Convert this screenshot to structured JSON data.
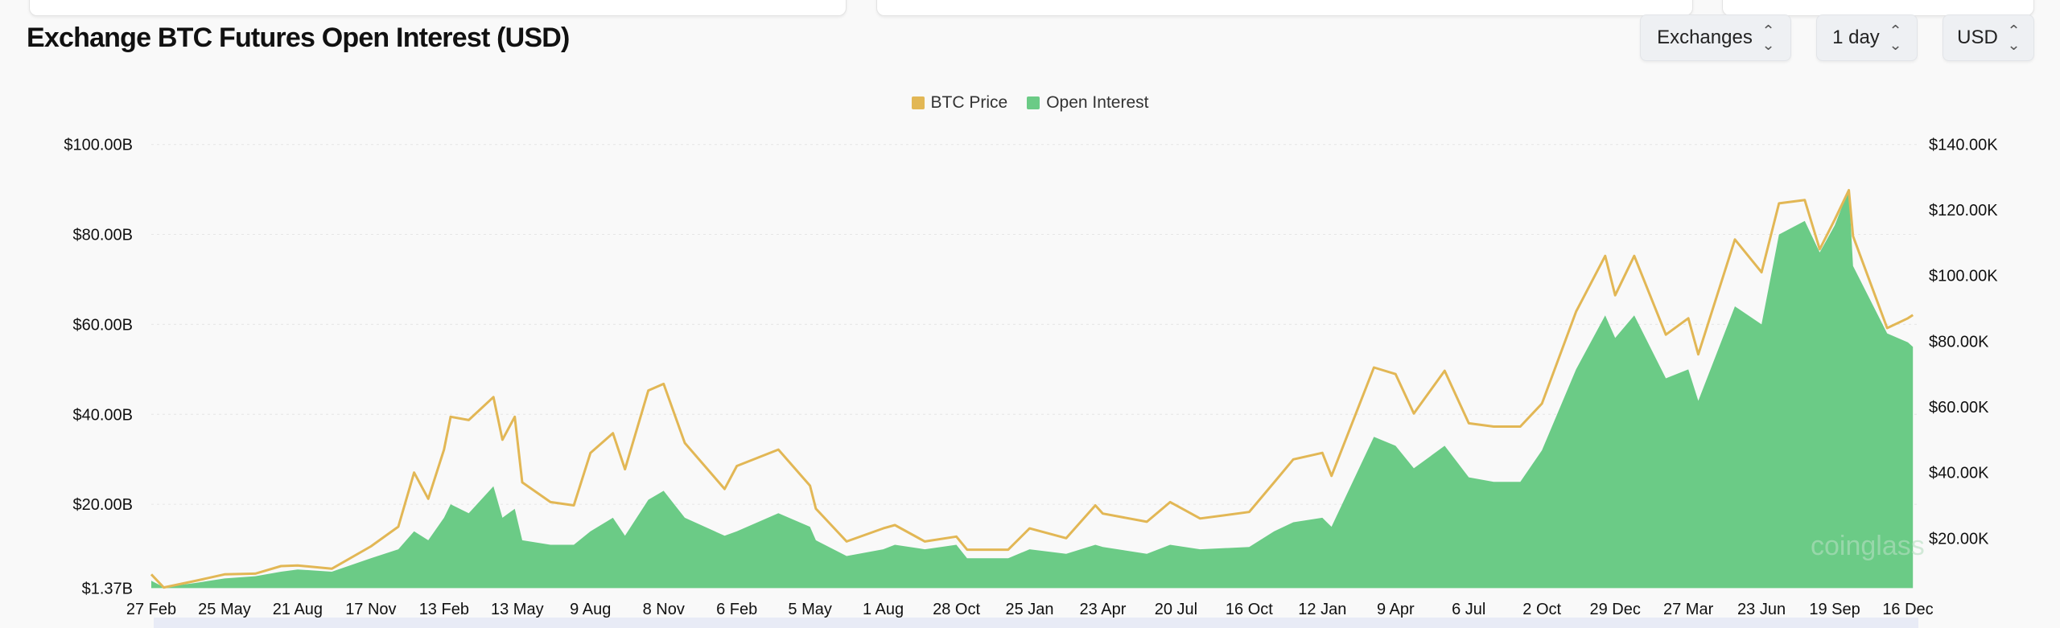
{
  "title": "Exchange BTC Futures Open Interest (USD)",
  "controls": {
    "exchanges": "Exchanges",
    "interval": "1 day",
    "currency": "USD",
    "chevron_icon": "updown-chevron-icon"
  },
  "colors": {
    "price": "#e2b755",
    "open_interest": "#6bcb86",
    "grid": "#e6e6e6"
  },
  "chart_data": {
    "type": "area+line",
    "legend": [
      {
        "name": "BTC Price",
        "color": "#e2b755"
      },
      {
        "name": "Open Interest",
        "color": "#6bcb86"
      }
    ],
    "legend_position": "top-center",
    "left_axis": {
      "ticks": [
        "$1.37B",
        "$20.00B",
        "$40.00B",
        "$60.00B",
        "$80.00B",
        "$100.00B"
      ],
      "values": [
        1.37,
        20,
        40,
        60,
        80,
        100
      ],
      "unit": "B USD"
    },
    "right_axis": {
      "ticks": [
        "$20.00K",
        "$40.00K",
        "$60.00K",
        "$80.00K",
        "$100.00K",
        "$120.00K",
        "$140.00K"
      ],
      "values": [
        20,
        40,
        60,
        80,
        100,
        120,
        140
      ],
      "unit": "K USD"
    },
    "x_ticks": [
      "27 Feb",
      "25 May",
      "21 Aug",
      "17 Nov",
      "13 Feb",
      "13 May",
      "9 Aug",
      "8 Nov",
      "6 Feb",
      "5 May",
      "1 Aug",
      "28 Oct",
      "25 Jan",
      "23 Apr",
      "20 Jul",
      "16 Oct",
      "12 Jan",
      "9 Apr",
      "6 Jul",
      "2 Oct",
      "29 Dec",
      "27 Mar",
      "23 Jun",
      "19 Sep",
      "16 Dec"
    ],
    "x_tick_dates": [
      "2020-02-27",
      "2020-05-25",
      "2020-08-21",
      "2020-11-17",
      "2021-02-13",
      "2021-05-13",
      "2021-08-09",
      "2021-11-08",
      "2022-02-06",
      "2022-05-05",
      "2022-08-01",
      "2022-10-28",
      "2023-01-25",
      "2023-04-23",
      "2023-07-20",
      "2023-10-16",
      "2024-01-12",
      "2024-04-09",
      "2024-07-06",
      "2024-10-02",
      "2024-12-29",
      "2025-03-27",
      "2025-06-23",
      "2025-09-19",
      "2025-12-16"
    ],
    "grid": true,
    "series": [
      {
        "name": "BTC Price",
        "axis": "right",
        "type": "line",
        "points": [
          [
            "2020-02-27",
            9.0
          ],
          [
            "2020-03-13",
            5.0
          ],
          [
            "2020-04-20",
            7.0
          ],
          [
            "2020-05-25",
            9.0
          ],
          [
            "2020-07-01",
            9.2
          ],
          [
            "2020-08-01",
            11.5
          ],
          [
            "2020-08-21",
            11.7
          ],
          [
            "2020-10-01",
            10.7
          ],
          [
            "2020-11-17",
            17.5
          ],
          [
            "2020-12-20",
            23.5
          ],
          [
            "2021-01-08",
            40
          ],
          [
            "2021-01-25",
            32
          ],
          [
            "2021-02-13",
            47
          ],
          [
            "2021-02-21",
            57
          ],
          [
            "2021-03-15",
            56
          ],
          [
            "2021-04-14",
            63
          ],
          [
            "2021-04-25",
            50
          ],
          [
            "2021-05-10",
            57
          ],
          [
            "2021-05-19",
            37
          ],
          [
            "2021-06-22",
            31
          ],
          [
            "2021-07-20",
            30
          ],
          [
            "2021-08-09",
            46
          ],
          [
            "2021-09-06",
            52
          ],
          [
            "2021-09-21",
            41
          ],
          [
            "2021-10-20",
            65
          ],
          [
            "2021-11-08",
            67
          ],
          [
            "2021-12-04",
            49
          ],
          [
            "2022-01-22",
            35
          ],
          [
            "2022-02-06",
            42
          ],
          [
            "2022-03-28",
            47
          ],
          [
            "2022-05-05",
            36
          ],
          [
            "2022-05-12",
            29
          ],
          [
            "2022-06-18",
            19
          ],
          [
            "2022-08-01",
            23
          ],
          [
            "2022-08-15",
            24
          ],
          [
            "2022-09-20",
            19
          ],
          [
            "2022-10-28",
            20.5
          ],
          [
            "2022-11-10",
            16.5
          ],
          [
            "2022-12-30",
            16.5
          ],
          [
            "2023-01-25",
            23
          ],
          [
            "2023-03-10",
            20
          ],
          [
            "2023-04-14",
            30
          ],
          [
            "2023-04-23",
            27.5
          ],
          [
            "2023-06-15",
            25
          ],
          [
            "2023-07-13",
            31
          ],
          [
            "2023-08-18",
            26
          ],
          [
            "2023-10-16",
            28
          ],
          [
            "2023-11-15",
            37
          ],
          [
            "2023-12-08",
            44
          ],
          [
            "2024-01-12",
            46
          ],
          [
            "2024-01-23",
            39
          ],
          [
            "2024-03-14",
            72
          ],
          [
            "2024-04-09",
            70
          ],
          [
            "2024-05-01",
            58
          ],
          [
            "2024-06-07",
            71
          ],
          [
            "2024-07-06",
            55
          ],
          [
            "2024-08-05",
            54
          ],
          [
            "2024-09-06",
            54
          ],
          [
            "2024-10-02",
            61
          ],
          [
            "2024-11-12",
            89
          ],
          [
            "2024-12-17",
            106
          ],
          [
            "2024-12-29",
            94
          ],
          [
            "2025-01-21",
            106
          ],
          [
            "2025-02-28",
            82
          ],
          [
            "2025-03-27",
            87
          ],
          [
            "2025-04-08",
            76
          ],
          [
            "2025-05-22",
            111
          ],
          [
            "2025-06-23",
            101
          ],
          [
            "2025-07-14",
            122
          ],
          [
            "2025-08-14",
            123
          ],
          [
            "2025-09-01",
            108
          ],
          [
            "2025-09-19",
            117
          ],
          [
            "2025-10-06",
            126
          ],
          [
            "2025-10-11",
            112
          ],
          [
            "2025-11-21",
            84
          ],
          [
            "2025-12-16",
            87
          ],
          [
            "2025-12-22",
            88
          ]
        ]
      },
      {
        "name": "Open Interest",
        "axis": "left",
        "type": "area",
        "points": [
          [
            "2020-02-27",
            3.0
          ],
          [
            "2020-03-13",
            1.6
          ],
          [
            "2020-04-20",
            2.5
          ],
          [
            "2020-05-25",
            3.5
          ],
          [
            "2020-07-01",
            4.0
          ],
          [
            "2020-08-01",
            5.0
          ],
          [
            "2020-08-21",
            5.5
          ],
          [
            "2020-10-01",
            5.0
          ],
          [
            "2020-11-17",
            8.0
          ],
          [
            "2020-12-20",
            10
          ],
          [
            "2021-01-08",
            14
          ],
          [
            "2021-01-25",
            12
          ],
          [
            "2021-02-13",
            17
          ],
          [
            "2021-02-21",
            20
          ],
          [
            "2021-03-15",
            18
          ],
          [
            "2021-04-14",
            24
          ],
          [
            "2021-04-25",
            17
          ],
          [
            "2021-05-10",
            19
          ],
          [
            "2021-05-19",
            12
          ],
          [
            "2021-06-22",
            11
          ],
          [
            "2021-07-20",
            11
          ],
          [
            "2021-08-09",
            14
          ],
          [
            "2021-09-06",
            17
          ],
          [
            "2021-09-21",
            13
          ],
          [
            "2021-10-20",
            21
          ],
          [
            "2021-11-08",
            23
          ],
          [
            "2021-12-04",
            17
          ],
          [
            "2022-01-22",
            13
          ],
          [
            "2022-02-06",
            14
          ],
          [
            "2022-03-28",
            18
          ],
          [
            "2022-05-05",
            15
          ],
          [
            "2022-05-12",
            12
          ],
          [
            "2022-06-18",
            8.5
          ],
          [
            "2022-08-01",
            10
          ],
          [
            "2022-08-15",
            11
          ],
          [
            "2022-09-20",
            10
          ],
          [
            "2022-10-28",
            11
          ],
          [
            "2022-11-10",
            8
          ],
          [
            "2022-12-30",
            8
          ],
          [
            "2023-01-25",
            10
          ],
          [
            "2023-03-10",
            9
          ],
          [
            "2023-04-14",
            11
          ],
          [
            "2023-04-23",
            10.5
          ],
          [
            "2023-06-15",
            9
          ],
          [
            "2023-07-13",
            11
          ],
          [
            "2023-08-18",
            10
          ],
          [
            "2023-10-16",
            10.5
          ],
          [
            "2023-11-15",
            14
          ],
          [
            "2023-12-08",
            16
          ],
          [
            "2024-01-12",
            17
          ],
          [
            "2024-01-23",
            15
          ],
          [
            "2024-03-14",
            35
          ],
          [
            "2024-04-09",
            33
          ],
          [
            "2024-05-01",
            28
          ],
          [
            "2024-06-07",
            33
          ],
          [
            "2024-07-06",
            26
          ],
          [
            "2024-08-05",
            25
          ],
          [
            "2024-09-06",
            25
          ],
          [
            "2024-10-02",
            32
          ],
          [
            "2024-11-12",
            50
          ],
          [
            "2024-12-17",
            62
          ],
          [
            "2024-12-29",
            57
          ],
          [
            "2025-01-21",
            62
          ],
          [
            "2025-02-28",
            48
          ],
          [
            "2025-03-27",
            50
          ],
          [
            "2025-04-08",
            43
          ],
          [
            "2025-05-22",
            64
          ],
          [
            "2025-06-23",
            60
          ],
          [
            "2025-07-14",
            80
          ],
          [
            "2025-08-14",
            83
          ],
          [
            "2025-09-01",
            76
          ],
          [
            "2025-09-19",
            82
          ],
          [
            "2025-10-06",
            90
          ],
          [
            "2025-10-11",
            73
          ],
          [
            "2025-11-21",
            58
          ],
          [
            "2025-12-16",
            56
          ],
          [
            "2025-12-22",
            55
          ]
        ]
      }
    ]
  }
}
